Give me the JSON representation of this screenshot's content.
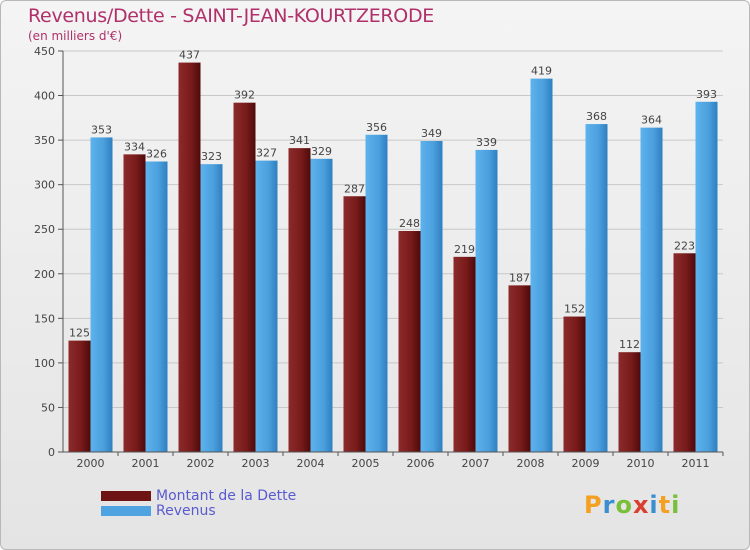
{
  "header": {
    "title": "Revenus/Dette - SAINT-JEAN-KOURTZERODE",
    "subtitle": "(en milliers d'€)"
  },
  "colors": {
    "dette": "#7a1a1a",
    "revenus": "#4fa3e0",
    "title": "#b0306a",
    "legend_text": "#5a5ad0"
  },
  "chart_data": {
    "type": "bar",
    "categories": [
      "2000",
      "2001",
      "2002",
      "2003",
      "2004",
      "2005",
      "2006",
      "2007",
      "2008",
      "2009",
      "2010",
      "2011"
    ],
    "series": [
      {
        "name": "Montant de la Dette",
        "values": [
          125,
          334,
          437,
          392,
          341,
          287,
          248,
          219,
          187,
          152,
          112,
          223
        ]
      },
      {
        "name": "Revenus",
        "values": [
          353,
          326,
          323,
          327,
          329,
          356,
          349,
          339,
          419,
          368,
          364,
          393
        ]
      }
    ],
    "ylim": [
      0,
      450
    ],
    "yticks": [
      0,
      50,
      100,
      150,
      200,
      250,
      300,
      350,
      400,
      450
    ],
    "grid": true,
    "legend_position": "bottom-left"
  },
  "logo": {
    "letters": [
      "P",
      "r",
      "o",
      "x",
      "i",
      "t",
      "i"
    ],
    "colors": [
      "#f4a020",
      "#3a8fd0",
      "#7abf3a",
      "#d9402f",
      "#3a8fd0",
      "#f4a020",
      "#7abf3a"
    ]
  }
}
